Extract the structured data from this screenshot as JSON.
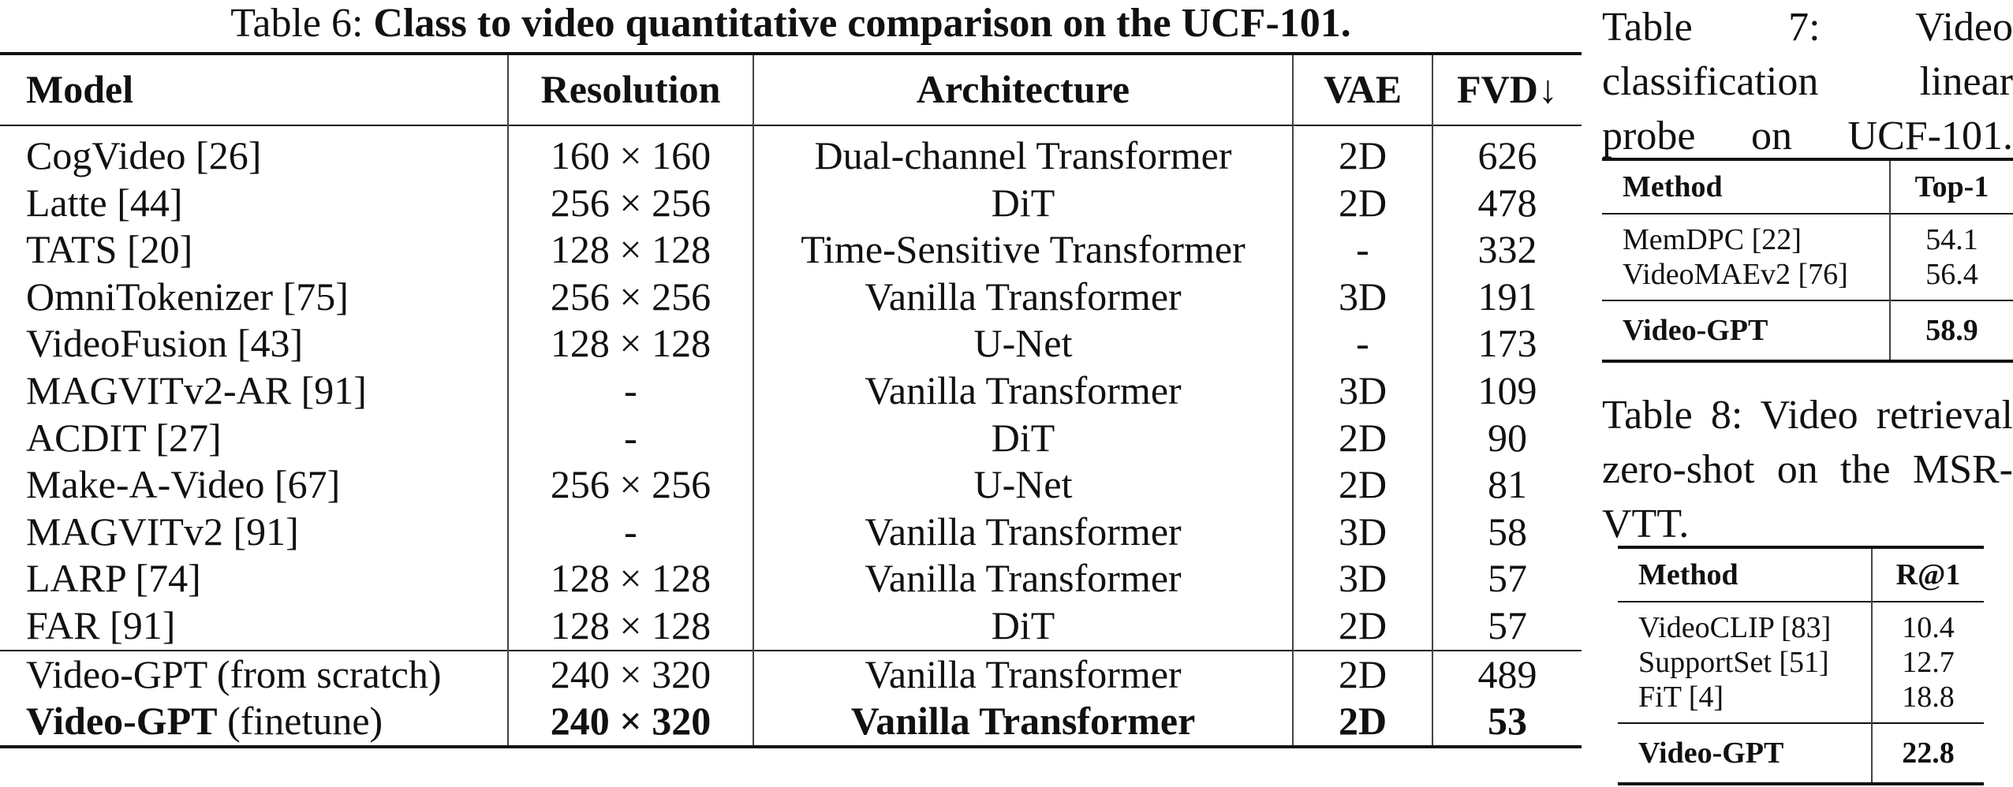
{
  "table6": {
    "label": "Table 6:",
    "title": "Class to video quantitative comparison on the UCF-101.",
    "header": [
      "Model",
      "Resolution",
      "Architecture",
      "VAE",
      "FVD↓"
    ],
    "rows": [
      [
        "CogVideo [26]",
        "160 × 160",
        "Dual-channel Transformer",
        "2D",
        "626"
      ],
      [
        "Latte [44]",
        "256 × 256",
        "DiT",
        "2D",
        "478"
      ],
      [
        "TATS [20]",
        "128 × 128",
        "Time-Sensitive Transformer",
        "-",
        "332"
      ],
      [
        "OmniTokenizer [75]",
        "256 × 256",
        "Vanilla Transformer",
        "3D",
        "191"
      ],
      [
        "VideoFusion [43]",
        "128 × 128",
        "U-Net",
        "-",
        "173"
      ],
      [
        "MAGVITv2-AR [91]",
        "-",
        "Vanilla Transformer",
        "3D",
        "109"
      ],
      [
        "ACDIT [27]",
        "-",
        "DiT",
        "2D",
        "90"
      ],
      [
        "Make-A-Video [67]",
        "256 × 256",
        "U-Net",
        "2D",
        "81"
      ],
      [
        "MAGVITv2 [91]",
        "-",
        "Vanilla Transformer",
        "3D",
        "58"
      ],
      [
        "LARP [74]",
        "128 × 128",
        "Vanilla Transformer",
        "3D",
        "57"
      ],
      [
        "FAR [91]",
        "128 × 128",
        "DiT",
        "2D",
        "57"
      ]
    ],
    "ours_rows": [
      [
        "Video-GPT (from scratch)",
        "240 × 320",
        "Vanilla Transformer",
        "2D",
        "489"
      ]
    ],
    "final_row": {
      "model_name": "Video-GPT",
      "model_note": "(finetune)",
      "resolution": "240 × 320",
      "architecture": "Vanilla Transformer",
      "vae": "2D",
      "fvd": "53"
    }
  },
  "table7": {
    "caption": "Table 7: Video classification linear probe on UCF-101.",
    "header": [
      "Method",
      "Top-1"
    ],
    "rows": [
      [
        "MemDPC [22]",
        "54.1"
      ],
      [
        "VideoMAEv2 [76]",
        "56.4"
      ]
    ],
    "final_row": [
      "Video-GPT",
      "58.9"
    ]
  },
  "table8": {
    "caption": "Table 8: Video retrieval zero-shot on the MSR-VTT.",
    "header": [
      "Method",
      "R@1"
    ],
    "rows": [
      [
        "VideoCLIP [83]",
        "10.4"
      ],
      [
        "SupportSet [51]",
        "12.7"
      ],
      [
        "FiT [4]",
        "18.8"
      ]
    ],
    "final_row": [
      "Video-GPT",
      "22.8"
    ]
  }
}
